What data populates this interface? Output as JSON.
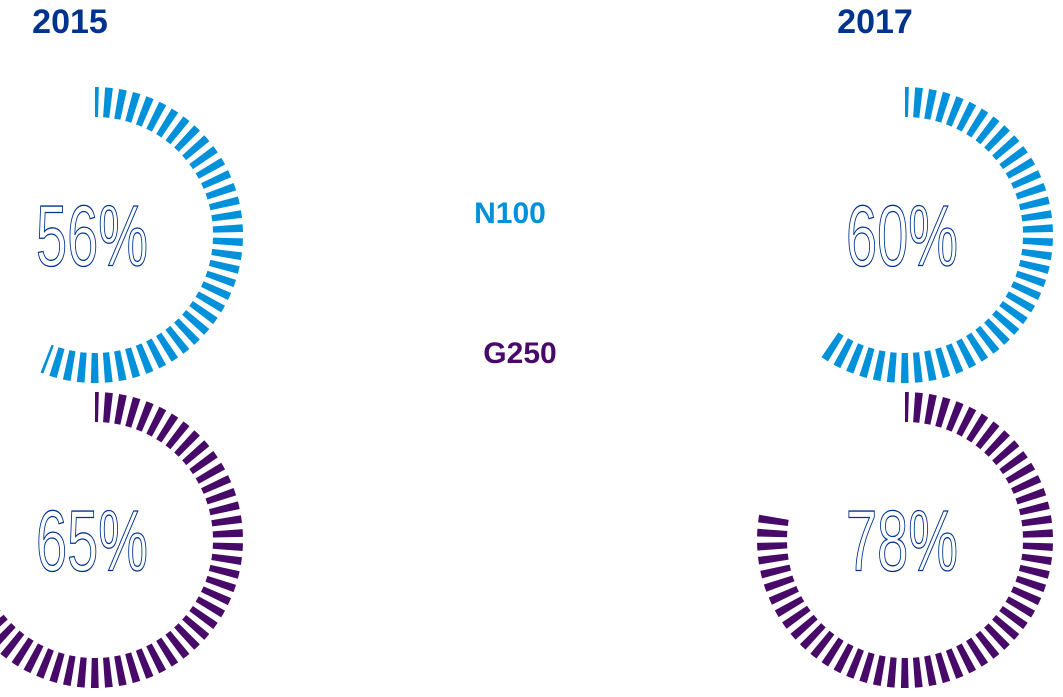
{
  "chart_data": {
    "type": "gauge",
    "categories": [
      "2015",
      "2017"
    ],
    "ylim": [
      0,
      100
    ],
    "series": [
      {
        "name": "N100",
        "color": "#0091da",
        "values": [
          56,
          60
        ],
        "value_labels": [
          "56%",
          "60%"
        ]
      },
      {
        "name": "G250",
        "color": "#470a68",
        "values": [
          65,
          78
        ],
        "value_labels": [
          "65%",
          "78%"
        ]
      }
    ]
  }
}
